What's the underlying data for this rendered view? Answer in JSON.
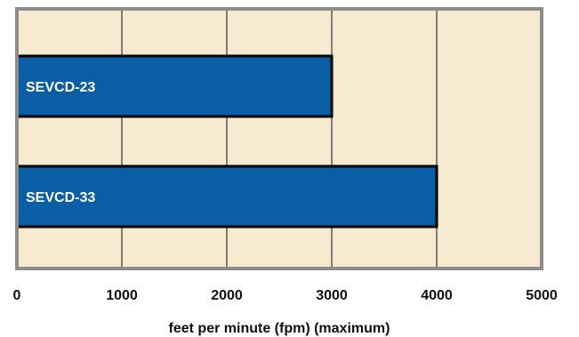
{
  "chart_data": {
    "type": "bar",
    "orientation": "horizontal",
    "categories": [
      "SEVCD-23",
      "SEVCD-33"
    ],
    "values": [
      3000,
      4000
    ],
    "title": "",
    "xlabel": "feet per minute (fpm) (maximum)",
    "ylabel": "",
    "xlim": [
      0,
      5000
    ],
    "xticks": [
      0,
      1000,
      2000,
      3000,
      4000,
      5000
    ],
    "grid": "vertical",
    "legend": "none",
    "colors": {
      "bar_fill": "#0a5ea6",
      "bar_outline": "#000000",
      "plot_background": "#f6ebd1",
      "plot_border": "#8c8c8c",
      "gridline": "#333333"
    }
  }
}
